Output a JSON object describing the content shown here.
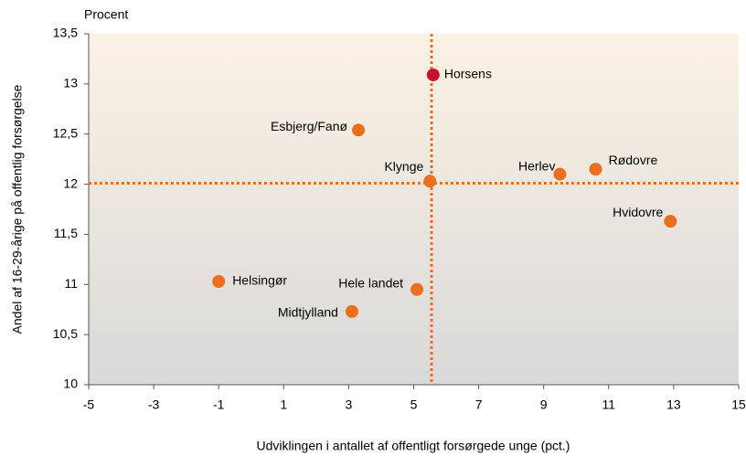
{
  "chart_data": {
    "type": "scatter",
    "unit_label": "Procent",
    "xlabel": "Udviklingen i antallet af offentligt forsørgede unge (pct.)",
    "ylabel": "Andel af 16-29-årige på offentlig forsørgelse",
    "points": [
      {
        "name": "Horsens",
        "x": 5.6,
        "y": 13.09,
        "color": "#c8102e"
      },
      {
        "name": "Esbjerg/Fanø",
        "x": 3.3,
        "y": 12.54,
        "color": "#ea7020"
      },
      {
        "name": "Klynge",
        "x": 5.5,
        "y": 12.03,
        "color": "#ea7020"
      },
      {
        "name": "Herlev",
        "x": 9.5,
        "y": 12.1,
        "color": "#ea7020"
      },
      {
        "name": "Rødovre",
        "x": 10.6,
        "y": 12.15,
        "color": "#ea7020"
      },
      {
        "name": "Hvidovre",
        "x": 12.9,
        "y": 11.63,
        "color": "#ea7020"
      },
      {
        "name": "Helsingør",
        "x": -1.0,
        "y": 11.03,
        "color": "#ea7020"
      },
      {
        "name": "Hele landet",
        "x": 5.1,
        "y": 10.95,
        "color": "#ea7020"
      },
      {
        "name": "Midtjylland",
        "x": 3.1,
        "y": 10.73,
        "color": "#ea7020"
      }
    ],
    "reference_lines": {
      "x": 5.55,
      "y": 12.01,
      "color": "#ea7020"
    },
    "xlim": [
      -5,
      15
    ],
    "xticks": [
      -5,
      -3,
      -1,
      1,
      3,
      5,
      7,
      9,
      11,
      13,
      15
    ],
    "ylim": [
      10,
      13.5
    ],
    "yticks": [
      10,
      {
        "value": 10.5,
        "label": "10,5"
      },
      11,
      {
        "value": 11.5,
        "label": "11,5"
      },
      12,
      {
        "value": 12.5,
        "label": "12,5"
      },
      13,
      {
        "value": 13.5,
        "label": "13,5"
      }
    ],
    "grid": false
  }
}
